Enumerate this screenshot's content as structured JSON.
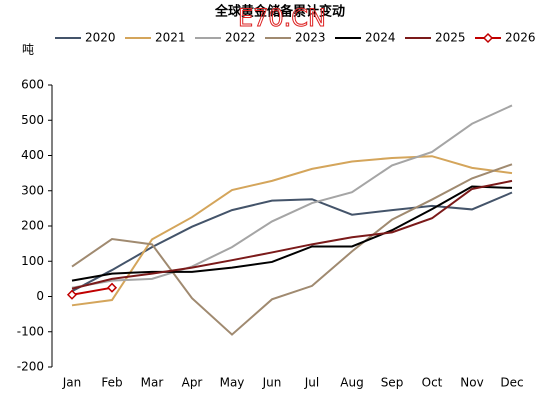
{
  "chart_data": {
    "type": "line",
    "title": "全球黄金储备累计变动",
    "annotation": "E70.CN",
    "y_label": "吨",
    "categories": [
      "Jan",
      "Feb",
      "Mar",
      "Apr",
      "May",
      "Jun",
      "Jul",
      "Aug",
      "Sep",
      "Oct",
      "Nov",
      "Dec"
    ],
    "ylim": [
      -200,
      600
    ],
    "yticks": [
      -200,
      -100,
      0,
      100,
      200,
      300,
      400,
      500,
      600
    ],
    "grid": false,
    "series": [
      {
        "name": "2020",
        "color": "#44546a",
        "values": [
          15,
          75,
          140,
          198,
          245,
          272,
          276,
          232,
          245,
          257,
          247,
          295
        ]
      },
      {
        "name": "2021",
        "color": "#d4a55b",
        "values": [
          -25,
          -10,
          162,
          225,
          302,
          328,
          362,
          383,
          393,
          398,
          365,
          350
        ]
      },
      {
        "name": "2022",
        "color": "#a5a5a5",
        "values": [
          25,
          45,
          50,
          85,
          140,
          213,
          265,
          296,
          372,
          410,
          490,
          542
        ]
      },
      {
        "name": "2023",
        "color": "#a08a70",
        "values": [
          85,
          163,
          148,
          -5,
          -108,
          -8,
          30,
          128,
          218,
          275,
          335,
          375
        ]
      },
      {
        "name": "2024",
        "color": "#000000",
        "values": [
          45,
          65,
          70,
          70,
          82,
          98,
          142,
          142,
          188,
          248,
          312,
          308
        ]
      },
      {
        "name": "2025",
        "color": "#7b1a1a",
        "values": [
          22,
          50,
          65,
          82,
          103,
          125,
          148,
          168,
          182,
          222,
          305,
          328
        ]
      },
      {
        "name": "2026",
        "color": "#c00000",
        "marker": "diamond",
        "values": [
          5,
          25,
          null,
          null,
          null,
          null,
          null,
          null,
          null,
          null,
          null,
          null
        ]
      }
    ]
  }
}
